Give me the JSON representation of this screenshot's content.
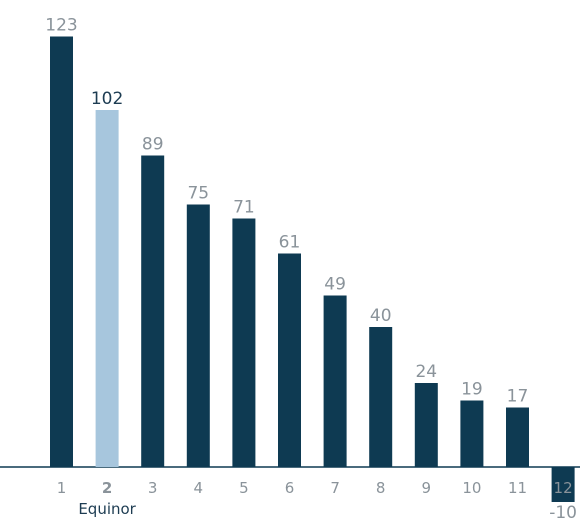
{
  "chart_data": {
    "type": "bar",
    "title": "",
    "xlabel": "",
    "ylabel": "",
    "categories": [
      "1",
      "2",
      "3",
      "4",
      "5",
      "6",
      "7",
      "8",
      "9",
      "10",
      "11",
      "12"
    ],
    "values": [
      123,
      102,
      89,
      75,
      71,
      61,
      49,
      40,
      24,
      19,
      17,
      -10
    ],
    "highlight_index": 1,
    "highlight_label": "Equinor",
    "ylim": [
      -10,
      123
    ],
    "grid": false,
    "colors": {
      "bar": "#0e3a52",
      "highlight": "#a7c6dd",
      "value_label": "#8a939a",
      "highlight_value_label": "#1d3c52",
      "tick_label": "#8a939a",
      "axis": "#0e3a52"
    }
  }
}
